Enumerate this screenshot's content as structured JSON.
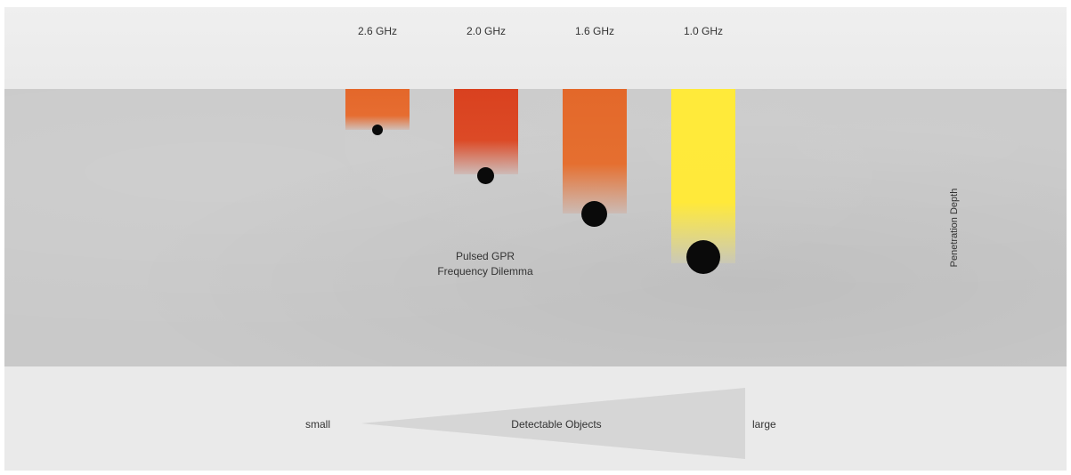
{
  "frequencies": [
    {
      "label": "2.6 GHz",
      "color": "#e4672a"
    },
    {
      "label": "2.0 GHz",
      "color": "#d9411f"
    },
    {
      "label": "1.6 GHz",
      "color": "#e3682a"
    },
    {
      "label": "1.0 GHz",
      "color": "#ffea3a"
    }
  ],
  "center_text": {
    "line1": "Pulsed GPR",
    "line2": "Frequency Dilemma"
  },
  "side_label": "Penetration Depth",
  "detectable": {
    "label": "Detectable Objects",
    "small": "small",
    "large": "large"
  },
  "colors": {
    "concrete": "#c9c9c9",
    "background": "#ececec",
    "object": "#0a0a0a",
    "wedge": "#d6d6d6"
  }
}
